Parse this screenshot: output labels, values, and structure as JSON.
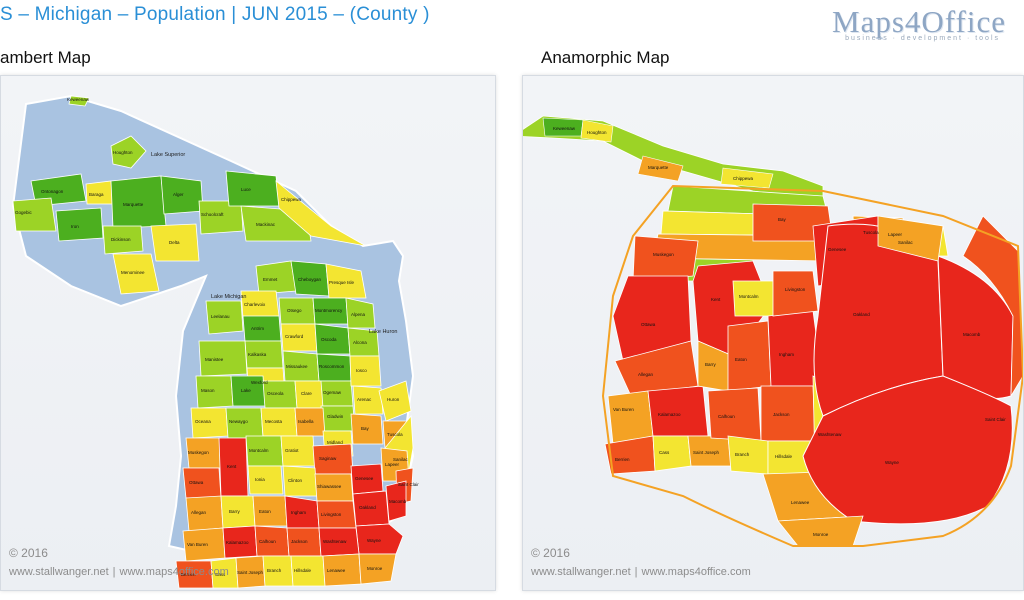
{
  "header": {
    "title": "S – Michigan – Population | JUN 2015 – (County )",
    "logo_text": "Maps4Office",
    "logo_tagline": "business · development · tools"
  },
  "panels": [
    {
      "title": "ambert Map",
      "copyright": "© 2016",
      "link1": "www.stallwanger.net",
      "separator": "|",
      "link2": "www.maps4office.com"
    },
    {
      "title": "Anamorphic Map",
      "copyright": "© 2016",
      "link1": "www.stallwanger.net",
      "separator": "|",
      "link2": "www.maps4office.com"
    }
  ],
  "colors": {
    "water": "#a9c3e1",
    "land_border": "#ffffff",
    "low": "#4caf1f",
    "low_mid": "#9cd326",
    "mid": "#f3e531",
    "mid_high": "#f4a224",
    "high": "#f0521e",
    "very_high": "#e8261c",
    "title_blue": "#2a8fd6"
  },
  "lakes": {
    "superior": "Lake Superior",
    "michigan": "Lake Michigan",
    "huron": "Lake Huron"
  },
  "lambert_labels": {
    "keweenaw": "Keweenaw",
    "houghton": "Houghton",
    "ontonagon": "Ontonagon",
    "gogebic": "Gogebic",
    "baraga": "Baraga",
    "iron": "Iron",
    "marquette": "Marquette",
    "alger": "Alger",
    "luce": "Luce",
    "chippewa": "Chippewa",
    "schoolcraft": "Schoolcraft",
    "delta": "Delta",
    "dickinson": "Dickinson",
    "menominee": "Menominee",
    "mackinac": "Mackinac",
    "charlevoix": "Charlevoix",
    "emmet": "Emmet",
    "cheboygan": "Cheboygan",
    "presque_isle": "Presque Isle",
    "antrim": "Antrim",
    "otsego": "Otsego",
    "montmorency": "Montmorency",
    "alpena": "Alpena",
    "leelanau": "Leelanau",
    "kalkaska": "Kalkaska",
    "crawford": "Crawford",
    "oscoda": "Oscoda",
    "alcona": "Alcona",
    "manistee": "Manistee",
    "wexford": "Wexford",
    "missaukee": "Missaukee",
    "roscommon": "Roscommon",
    "ogemaw": "Ogemaw",
    "iosco": "Iosco",
    "mason": "Mason",
    "lake": "Lake",
    "osceola": "Osceola",
    "clare": "Clare",
    "gladwin": "Gladwin",
    "arenac": "Arenac",
    "huron": "Huron",
    "oceana": "Oceana",
    "newaygo": "Newaygo",
    "mecosta": "Mecosta",
    "isabella": "Isabella",
    "midland": "Midland",
    "bay": "Bay",
    "tuscola": "Tuscola",
    "sanilac": "Sanilac",
    "muskegon": "Muskegon",
    "montcalm": "Montcalm",
    "gratiot": "Gratiot",
    "saginaw": "Saginaw",
    "genesee": "Genesee",
    "lapeer": "Lapeer",
    "st_clair": "Saint Clair",
    "ottawa": "Ottawa",
    "kent": "Kent",
    "ionia": "Ionia",
    "clinton": "Clinton",
    "shiawassee": "Shiawassee",
    "oakland": "Oakland",
    "macomb": "Macomb",
    "allegan": "Allegan",
    "barry": "Barry",
    "eaton": "Eaton",
    "ingham": "Ingham",
    "livingston": "Livingston",
    "wayne": "Wayne",
    "van_buren": "Van Buren",
    "kalamazoo": "Kalamazoo",
    "calhoun": "Calhoun",
    "jackson": "Jackson",
    "washtenaw": "Washtenaw",
    "monroe": "Monroe",
    "berrien": "Berrien",
    "cass": "Cass",
    "st_joseph": "Saint Joseph",
    "branch": "Branch",
    "hillsdale": "Hillsdale",
    "lenawee": "Lenawee"
  }
}
